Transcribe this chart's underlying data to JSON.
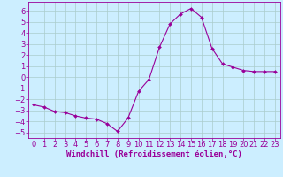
{
  "x": [
    0,
    1,
    2,
    3,
    4,
    5,
    6,
    7,
    8,
    9,
    10,
    11,
    12,
    13,
    14,
    15,
    16,
    17,
    18,
    19,
    20,
    21,
    22,
    23
  ],
  "y": [
    -2.5,
    -2.7,
    -3.1,
    -3.2,
    -3.5,
    -3.7,
    -3.8,
    -4.2,
    -4.9,
    -3.7,
    -1.3,
    -0.2,
    2.7,
    4.8,
    5.7,
    6.2,
    5.4,
    2.6,
    1.2,
    0.9,
    0.6,
    0.5,
    0.5,
    0.5
  ],
  "line_color": "#990099",
  "marker": "D",
  "marker_size": 2.0,
  "bg_color": "#cceeff",
  "grid_color": "#aacccc",
  "xlabel": "Windchill (Refroidissement éolien,°C)",
  "xlabel_color": "#990099",
  "xlabel_fontsize": 6.5,
  "tick_color": "#990099",
  "tick_fontsize": 6.0,
  "ylim": [
    -5.5,
    6.8
  ],
  "yticks": [
    -5,
    -4,
    -3,
    -2,
    -1,
    0,
    1,
    2,
    3,
    4,
    5,
    6
  ],
  "xlim": [
    -0.5,
    23.5
  ],
  "xticks": [
    0,
    1,
    2,
    3,
    4,
    5,
    6,
    7,
    8,
    9,
    10,
    11,
    12,
    13,
    14,
    15,
    16,
    17,
    18,
    19,
    20,
    21,
    22,
    23
  ]
}
